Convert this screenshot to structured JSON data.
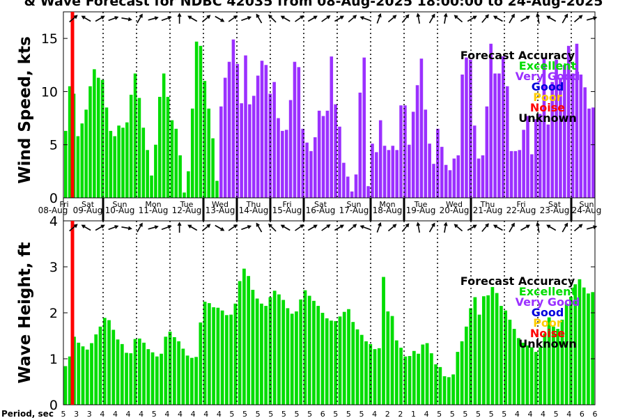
{
  "title": "& Wave Forecast for NDBC 42035 from 08-Aug-2025 18:00:00 to 24-Aug-2025",
  "period_label": "Period, sec",
  "period_values": [
    "5",
    "3",
    "3",
    "4",
    "4",
    "4",
    "4",
    "5",
    "4",
    "4",
    "4",
    "4",
    "4",
    "5",
    "5",
    "5",
    "5",
    "5",
    "5",
    "5",
    "6",
    "5",
    "5",
    "5",
    "4",
    "2",
    "2",
    "1",
    "4",
    "5",
    "5",
    "5",
    "5",
    "5",
    "5",
    "4",
    "4",
    "4",
    "5",
    "4",
    "6",
    "6"
  ],
  "legend": {
    "title": "Forecast Accuracy",
    "items": [
      {
        "label": "Excellent",
        "color": "#00dd00"
      },
      {
        "label": "Very Good",
        "color": "#9b30ff"
      },
      {
        "label": "Good",
        "color": "#0000dd"
      },
      {
        "label": "Poor",
        "color": "#ffcc00"
      },
      {
        "label": "Noise",
        "color": "#ff0000"
      },
      {
        "label": "Unknown",
        "color": "#000000"
      }
    ]
  },
  "chart_data": [
    {
      "type": "bar",
      "ylabel": "Wind Speed, kts",
      "ylim": [
        0,
        17.5
      ],
      "yticks": [
        "0",
        "5",
        "10",
        "15"
      ],
      "day_labels": [
        {
          "day": "Fri",
          "date": "08-Aug"
        },
        {
          "day": "Sat",
          "date": "09-Aug"
        },
        {
          "day": "Sun",
          "date": "10-Aug"
        },
        {
          "day": "Mon",
          "date": "11-Aug"
        },
        {
          "day": "Tue",
          "date": "12-Aug"
        },
        {
          "day": "Wed",
          "date": "13-Aug"
        },
        {
          "day": "Thu",
          "date": "14-Aug"
        },
        {
          "day": "Fri",
          "date": "15-Aug"
        },
        {
          "day": "Sat",
          "date": "16-Aug"
        },
        {
          "day": "Sun",
          "date": "17-Aug"
        },
        {
          "day": "Mon",
          "date": "18-Aug"
        },
        {
          "day": "Tue",
          "date": "19-Aug"
        },
        {
          "day": "Wed",
          "date": "20-Aug"
        },
        {
          "day": "Thu",
          "date": "21-Aug"
        },
        {
          "day": "Fri",
          "date": "22-Aug"
        },
        {
          "day": "Sat",
          "date": "23-Aug"
        },
        {
          "day": "Sun",
          "date": "24-Aug"
        }
      ],
      "green_values": [
        6.3,
        10.5,
        9.8,
        5.8,
        7.0,
        8.3,
        10.5,
        12.1,
        11.3,
        11.1,
        8.5,
        6.3,
        5.8,
        6.8,
        6.6,
        7.1,
        9.7,
        11.7,
        9.4,
        6.6,
        4.5,
        2.1,
        5.0,
        9.5,
        11.7,
        9.5,
        7.3,
        6.5,
        4.0,
        0.5,
        2.5,
        8.4,
        14.7,
        14.3,
        11.0,
        8.4,
        5.6,
        1.6
      ],
      "purple_values": [
        8.6,
        11.3,
        12.8,
        14.9,
        12.6,
        8.9,
        13.4,
        8.8,
        9.6,
        11.5,
        12.9,
        12.5,
        9.8,
        10.9,
        7.5,
        6.3,
        6.4,
        9.2,
        12.8,
        12.3,
        6.5,
        5.2,
        4.4,
        5.7,
        8.2,
        7.7,
        8.2,
        13.3,
        8.8,
        6.7,
        3.3,
        2.0,
        0.6,
        2.2,
        9.9,
        13.2,
        1.1,
        5.1,
        4.3,
        7.3,
        4.9,
        4.5,
        4.9,
        4.5,
        8.7,
        8.7,
        5.0,
        8.1,
        10.6,
        13.1,
        8.3,
        5.1,
        3.2,
        6.5,
        4.8,
        3.1,
        2.6,
        3.7,
        4.0,
        11.6,
        13.2,
        13.0,
        6.8,
        3.7,
        4.0,
        8.6,
        14.5,
        11.7,
        11.7,
        13.3,
        10.5,
        4.4,
        4.4,
        4.5,
        6.4,
        7.7,
        4.1,
        7.4,
        7.9,
        13.2,
        6.9,
        10.9,
        13.0,
        11.3,
        12.5,
        14.3,
        11.7,
        14.5,
        11.6,
        10.4,
        8.4,
        8.5
      ]
    },
    {
      "type": "bar",
      "ylabel": "Wave Height, ft",
      "ylim": [
        0,
        4
      ],
      "yticks": [
        "0",
        "1",
        "2",
        "3",
        "4"
      ],
      "values": [
        0.84,
        1.05,
        1.48,
        1.35,
        1.27,
        1.2,
        1.34,
        1.53,
        1.7,
        1.89,
        1.84,
        1.63,
        1.42,
        1.32,
        1.13,
        1.12,
        1.43,
        1.44,
        1.35,
        1.21,
        1.14,
        1.05,
        1.11,
        1.48,
        1.59,
        1.47,
        1.38,
        1.22,
        1.07,
        1.02,
        1.04,
        1.79,
        2.24,
        2.21,
        2.12,
        2.11,
        2.05,
        1.95,
        1.96,
        2.2,
        2.69,
        2.96,
        2.8,
        2.5,
        2.31,
        2.2,
        2.15,
        2.34,
        2.48,
        2.4,
        2.28,
        2.1,
        1.98,
        2.03,
        2.29,
        2.49,
        2.37,
        2.26,
        2.15,
        2.0,
        1.88,
        1.83,
        1.82,
        1.92,
        2.02,
        2.08,
        1.8,
        1.64,
        1.52,
        1.38,
        1.32,
        1.21,
        1.23,
        2.78,
        2.03,
        1.93,
        1.4,
        1.24,
        1.05,
        1.06,
        1.17,
        1.11,
        1.31,
        1.34,
        1.12,
        0.88,
        0.82,
        0.62,
        0.6,
        0.66,
        1.15,
        1.38,
        1.7,
        2.1,
        2.34,
        1.96,
        2.36,
        2.38,
        2.56,
        2.43,
        2.15,
        2.05,
        1.85,
        1.65,
        1.45,
        1.35,
        1.29,
        1.25,
        1.15,
        1.25,
        1.55,
        1.9,
        1.7,
        1.65,
        1.85,
        2.2,
        2.35,
        2.62,
        2.73,
        2.55,
        2.42,
        2.45
      ]
    }
  ]
}
